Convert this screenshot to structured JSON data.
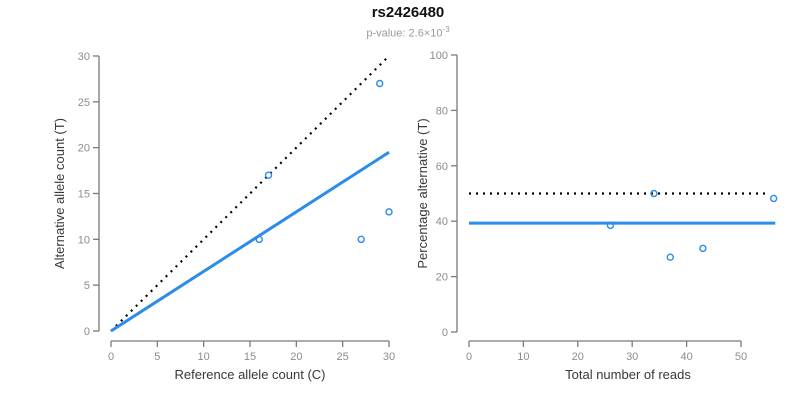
{
  "header": {
    "title": "rs2426480",
    "pvalue_label": "p-value:",
    "pvalue_mantissa": "2.6",
    "times_symbol": "×",
    "pvalue_base": "10",
    "pvalue_exponent": "-3"
  },
  "colors": {
    "line_blue": "#2b8cea",
    "line_black": "#000000",
    "axis_line": "#7a7a7a",
    "tick_label": "#8c8c8c",
    "axis_title": "#383838"
  },
  "chart_data": [
    {
      "id": "ref-vs-alt",
      "type": "scatter",
      "xlabel": "Reference allele count (C)",
      "ylabel": "Alternative allele count (T)",
      "xlim": [
        0,
        30
      ],
      "ylim": [
        0,
        30
      ],
      "xticks": [
        0,
        5,
        10,
        15,
        20,
        25,
        30
      ],
      "yticks": [
        0,
        5,
        10,
        15,
        20,
        25,
        30
      ],
      "grid": false,
      "legend": null,
      "points": [
        [
          16,
          10
        ],
        [
          17,
          17
        ],
        [
          27,
          10
        ],
        [
          29,
          27
        ],
        [
          30,
          13
        ]
      ],
      "lines": [
        {
          "name": "identity-line",
          "style": "dotted",
          "color": "black",
          "x": [
            0,
            30
          ],
          "y": [
            0,
            30
          ]
        },
        {
          "name": "fitted-ratio-line",
          "style": "solid",
          "color": "blue",
          "x": [
            0,
            30
          ],
          "y": [
            0,
            19.5
          ]
        }
      ]
    },
    {
      "id": "reads-vs-percentage",
      "type": "scatter",
      "xlabel": "Total number of reads",
      "ylabel": "Percentage alternative (T)",
      "xlim": [
        0,
        50
      ],
      "ylim": [
        0,
        100
      ],
      "xticks": [
        0,
        10,
        20,
        30,
        40,
        50
      ],
      "yticks": [
        0,
        20,
        40,
        60,
        80,
        100
      ],
      "grid": false,
      "legend": null,
      "points": [
        [
          26,
          38.5
        ],
        [
          34,
          50
        ],
        [
          37,
          27
        ],
        [
          43,
          30.2
        ],
        [
          56,
          48.2
        ]
      ],
      "lines": [
        {
          "name": "expected-50pct-line",
          "style": "dotted",
          "color": "black",
          "x": [
            0,
            55
          ],
          "y": [
            50,
            50
          ]
        },
        {
          "name": "observed-mean-line",
          "style": "solid",
          "color": "blue",
          "x": [
            0,
            56.3
          ],
          "y": [
            39.3,
            39.3
          ]
        }
      ]
    }
  ]
}
